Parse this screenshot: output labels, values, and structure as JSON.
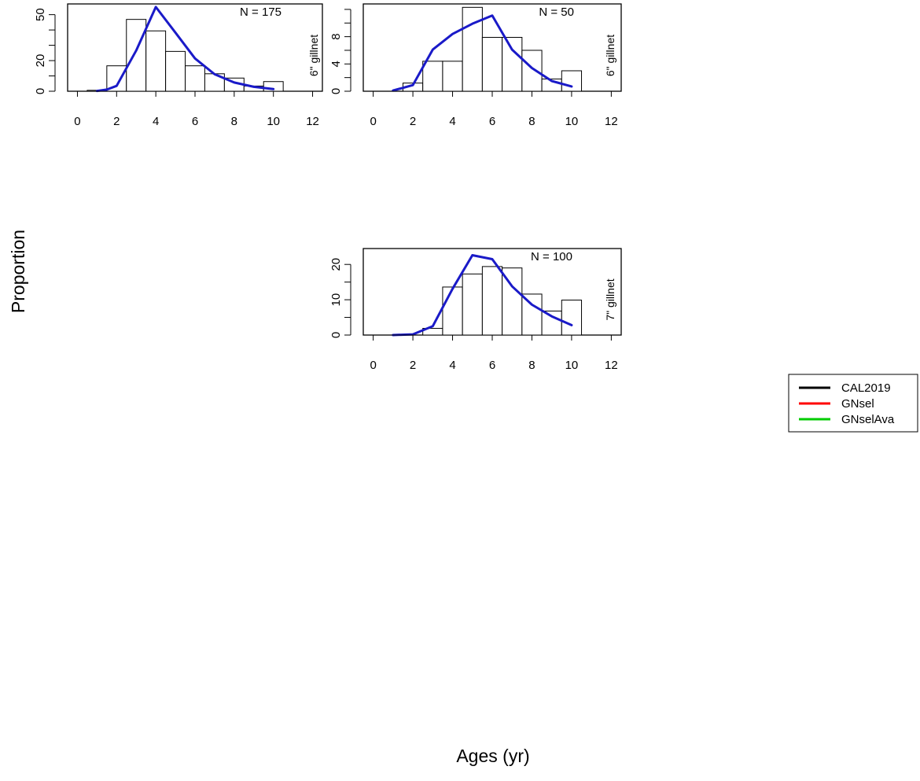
{
  "figure": {
    "ylabel": "Proportion",
    "xlabel": "Ages (yr)"
  },
  "legend": {
    "items": [
      {
        "label": "CAL2019",
        "color": "#000000"
      },
      {
        "label": "GNsel",
        "color": "#ff0000"
      },
      {
        "label": "GNselAva",
        "color": "#00cc00"
      }
    ]
  },
  "colors": {
    "fit_line": "#1a1ac8",
    "bar_fill": "#ffffff",
    "bar_stroke": "#000000"
  },
  "chart_data": [
    {
      "type": "bar",
      "panel": "top-left",
      "n_label": "N = 175",
      "gear_label": "6\" gillnet",
      "xlim": [
        -0.5,
        12.5
      ],
      "ylim": [
        0,
        57
      ],
      "xticks": [
        0,
        2,
        4,
        6,
        8,
        10,
        12
      ],
      "yticks": [
        0,
        20,
        50
      ],
      "yminor": [
        10,
        30,
        40
      ],
      "bars": [
        {
          "x": 1,
          "value": 0.6
        },
        {
          "x": 2,
          "value": 16.6
        },
        {
          "x": 3,
          "value": 46.9
        },
        {
          "x": 4,
          "value": 39.4
        },
        {
          "x": 5,
          "value": 26.0
        },
        {
          "x": 6,
          "value": 16.6
        },
        {
          "x": 7,
          "value": 11.4
        },
        {
          "x": 8,
          "value": 8.6
        },
        {
          "x": 9,
          "value": 3.4
        },
        {
          "x": 10,
          "value": 6.3
        }
      ],
      "line": {
        "x": [
          1,
          1.5,
          2,
          3,
          4,
          5,
          6,
          7,
          8,
          9,
          10
        ],
        "y": [
          0.2,
          1.1,
          3.5,
          26.6,
          55.0,
          38.3,
          21.4,
          11.1,
          5.7,
          2.9,
          1.4
        ]
      }
    },
    {
      "type": "bar",
      "panel": "top-right",
      "n_label": "N = 50",
      "gear_label": "6\" gillnet",
      "xlim": [
        -0.5,
        12.5
      ],
      "ylim": [
        0,
        12.8
      ],
      "xticks": [
        0,
        2,
        4,
        6,
        8,
        10,
        12
      ],
      "yticks": [
        0,
        4,
        8
      ],
      "yminor": [
        2,
        6,
        10,
        12
      ],
      "bars": [
        {
          "x": 2,
          "value": 1.2
        },
        {
          "x": 3,
          "value": 4.4
        },
        {
          "x": 4,
          "value": 4.4
        },
        {
          "x": 5,
          "value": 12.3
        },
        {
          "x": 6,
          "value": 7.9
        },
        {
          "x": 7,
          "value": 7.9
        },
        {
          "x": 8,
          "value": 6.0
        },
        {
          "x": 9,
          "value": 1.8
        },
        {
          "x": 10,
          "value": 3.0
        }
      ],
      "line": {
        "x": [
          1,
          2,
          3,
          4,
          5,
          6,
          7,
          8,
          9,
          10
        ],
        "y": [
          0.1,
          0.9,
          6.1,
          8.4,
          9.9,
          11.1,
          6.1,
          3.4,
          1.5,
          0.7
        ]
      }
    },
    {
      "type": "bar",
      "panel": "middle-right",
      "n_label": "N = 100",
      "gear_label": "7\" gillnet",
      "xlim": [
        -0.5,
        12.5
      ],
      "ylim": [
        0,
        24.5
      ],
      "xticks": [
        0,
        2,
        4,
        6,
        8,
        10,
        12
      ],
      "yticks": [
        0,
        10,
        20
      ],
      "yminor": [
        5,
        15
      ],
      "bars": [
        {
          "x": 3,
          "value": 1.9
        },
        {
          "x": 4,
          "value": 13.6
        },
        {
          "x": 5,
          "value": 17.3
        },
        {
          "x": 6,
          "value": 19.4
        },
        {
          "x": 7,
          "value": 19.0
        },
        {
          "x": 8,
          "value": 11.6
        },
        {
          "x": 9,
          "value": 6.8
        },
        {
          "x": 10,
          "value": 9.9
        }
      ],
      "line": {
        "x": [
          1,
          2,
          3,
          4,
          5,
          6,
          7,
          8,
          9,
          10
        ],
        "y": [
          0.0,
          0.2,
          2.5,
          13.1,
          22.6,
          21.5,
          13.8,
          8.6,
          5.3,
          2.8
        ]
      }
    }
  ]
}
